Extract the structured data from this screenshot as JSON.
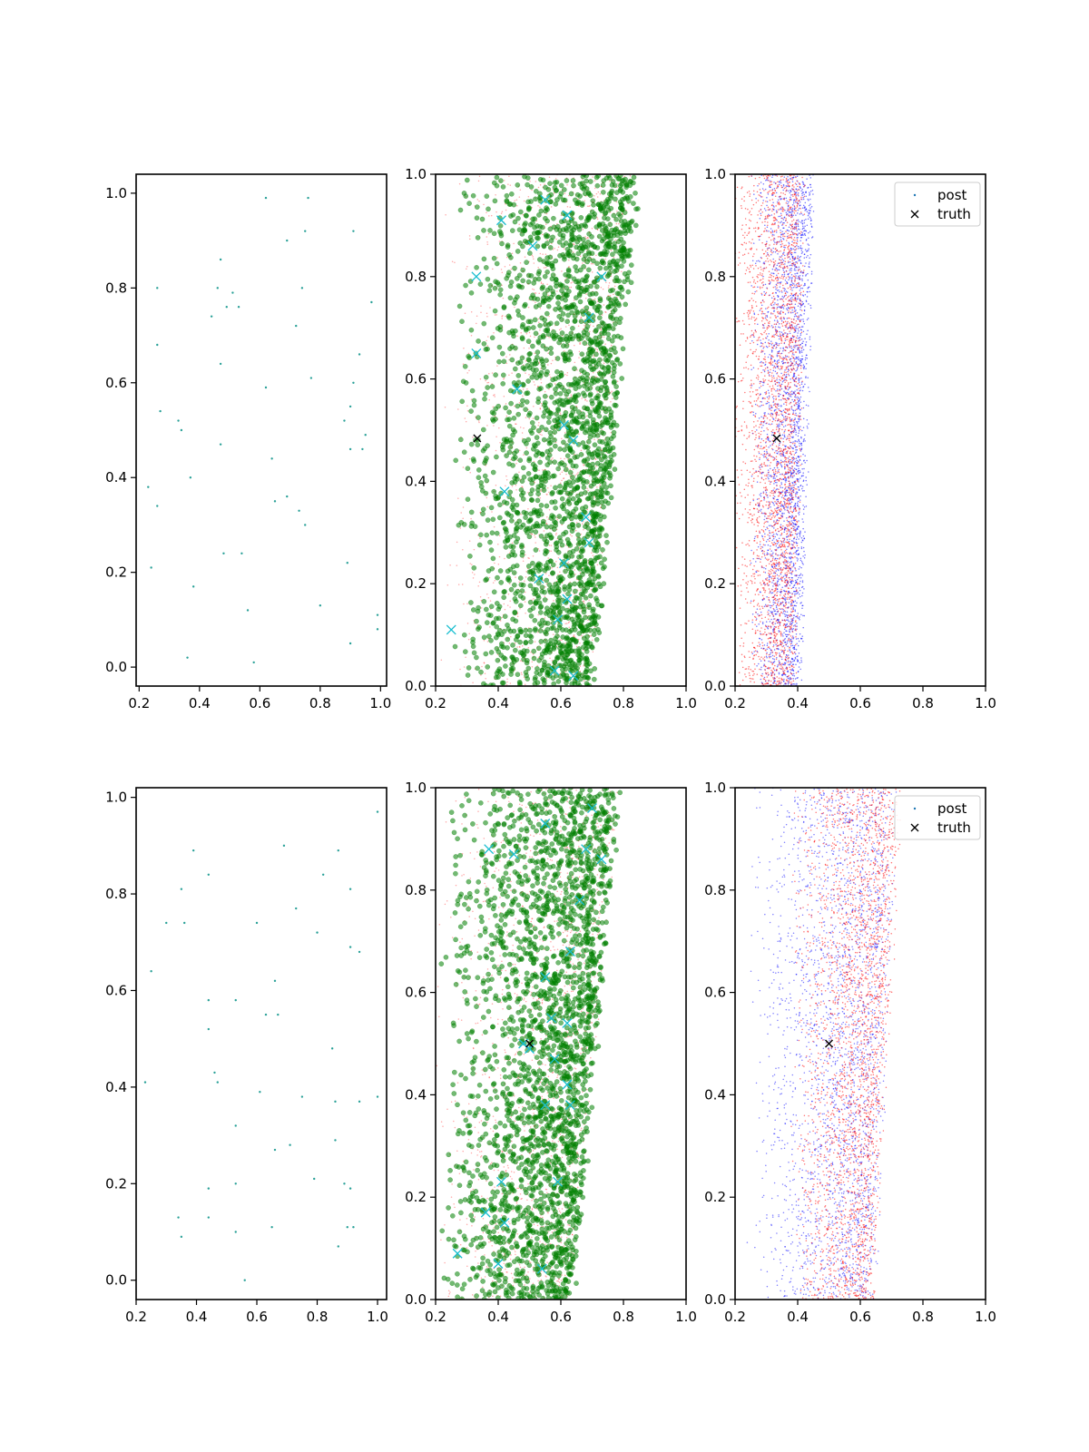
{
  "chart_data": [
    {
      "type": "scatter",
      "panel": "row1-col1",
      "xlim": [
        0.19,
        1.02
      ],
      "ylim": [
        -0.04,
        1.04
      ],
      "xticks": [
        "0.2",
        "0.4",
        "0.6",
        "0.8",
        "1.0"
      ],
      "yticks": [
        "0.0",
        "0.2",
        "0.4",
        "0.6",
        "0.8",
        "1.0"
      ],
      "series": [
        {
          "color": "#2aa198",
          "marker": "dot",
          "size": 1.2,
          "points": [
            [
              0.62,
              0.99
            ],
            [
              0.76,
              0.99
            ],
            [
              0.75,
              0.92
            ],
            [
              0.91,
              0.92
            ],
            [
              0.69,
              0.9
            ],
            [
              0.47,
              0.86
            ],
            [
              0.26,
              0.8
            ],
            [
              0.46,
              0.8
            ],
            [
              0.74,
              0.8
            ],
            [
              0.51,
              0.79
            ],
            [
              0.97,
              0.77
            ],
            [
              0.49,
              0.76
            ],
            [
              0.53,
              0.76
            ],
            [
              0.44,
              0.74
            ],
            [
              0.72,
              0.72
            ],
            [
              0.26,
              0.68
            ],
            [
              0.93,
              0.66
            ],
            [
              0.47,
              0.64
            ],
            [
              0.77,
              0.61
            ],
            [
              0.91,
              0.6
            ],
            [
              0.62,
              0.59
            ],
            [
              0.27,
              0.54
            ],
            [
              0.9,
              0.55
            ],
            [
              0.33,
              0.52
            ],
            [
              0.88,
              0.52
            ],
            [
              0.34,
              0.5
            ],
            [
              0.95,
              0.49
            ],
            [
              0.47,
              0.47
            ],
            [
              0.9,
              0.46
            ],
            [
              0.94,
              0.46
            ],
            [
              0.64,
              0.44
            ],
            [
              0.37,
              0.4
            ],
            [
              0.23,
              0.38
            ],
            [
              0.69,
              0.36
            ],
            [
              0.65,
              0.35
            ],
            [
              0.26,
              0.34
            ],
            [
              0.73,
              0.33
            ],
            [
              0.75,
              0.3
            ],
            [
              0.48,
              0.24
            ],
            [
              0.54,
              0.24
            ],
            [
              0.24,
              0.21
            ],
            [
              0.89,
              0.22
            ],
            [
              0.38,
              0.17
            ],
            [
              0.8,
              0.13
            ],
            [
              0.56,
              0.12
            ],
            [
              0.99,
              0.11
            ],
            [
              0.99,
              0.08
            ],
            [
              0.9,
              0.05
            ],
            [
              0.36,
              0.02
            ],
            [
              0.58,
              0.01
            ]
          ]
        }
      ]
    },
    {
      "type": "scatter",
      "panel": "row1-col2",
      "xlim": [
        0.2,
        1.0
      ],
      "ylim": [
        0.0,
        1.0
      ],
      "xticks": [
        "0.2",
        "0.4",
        "0.6",
        "0.8",
        "1.0"
      ],
      "yticks": [
        "0.0",
        "0.2",
        "0.4",
        "0.6",
        "0.8",
        "1.0"
      ],
      "series": [
        {
          "color": "#ff0000",
          "marker": "dot",
          "opacity": 0.35,
          "distribution": {
            "n": 1500,
            "x_low": 0.21,
            "x_left_bottom": 0.22,
            "x_right_bottom": 0.69,
            "x_right_top": 0.82,
            "x_mode": 0.68
          }
        },
        {
          "color": "#008000",
          "marker": "circle",
          "opacity": 0.55,
          "distribution": {
            "n": 2400,
            "x_low": 0.23,
            "x_left_bottom": 0.25,
            "x_right_bottom": 0.7,
            "x_right_top": 0.84,
            "x_mode": 0.7
          }
        },
        {
          "color": "#17becf",
          "marker": "x",
          "points": [
            [
              0.41,
              0.91
            ],
            [
              0.55,
              0.95
            ],
            [
              0.62,
              0.92
            ],
            [
              0.51,
              0.86
            ],
            [
              0.33,
              0.8
            ],
            [
              0.73,
              0.8
            ],
            [
              0.69,
              0.72
            ],
            [
              0.33,
              0.65
            ],
            [
              0.46,
              0.58
            ],
            [
              0.61,
              0.51
            ],
            [
              0.64,
              0.48
            ],
            [
              0.42,
              0.38
            ],
            [
              0.68,
              0.33
            ],
            [
              0.69,
              0.28
            ],
            [
              0.61,
              0.24
            ],
            [
              0.53,
              0.21
            ],
            [
              0.62,
              0.17
            ],
            [
              0.59,
              0.13
            ],
            [
              0.25,
              0.11
            ],
            [
              0.58,
              0.03
            ],
            [
              0.64,
              0.02
            ]
          ]
        },
        {
          "color": "#000000",
          "marker": "x",
          "points": [
            [
              0.333,
              0.484
            ]
          ]
        }
      ]
    },
    {
      "type": "scatter",
      "panel": "row1-col3",
      "xlim": [
        0.2,
        1.0
      ],
      "ylim": [
        0.0,
        1.0
      ],
      "xticks": [
        "0.2",
        "0.4",
        "0.6",
        "0.8",
        "1.0"
      ],
      "yticks": [
        "0.0",
        "0.2",
        "0.4",
        "0.6",
        "0.8",
        "1.0"
      ],
      "legend": {
        "position": "upper right",
        "entries": [
          {
            "label": "post",
            "color": "#1f77b4",
            "marker": "dot"
          },
          {
            "label": "truth",
            "color": "#000000",
            "marker": "x"
          }
        ]
      },
      "series": [
        {
          "name": "post",
          "color": "#0000ff",
          "marker": "dot",
          "opacity": 0.55,
          "distribution": {
            "n": 2600,
            "x_low": 0.25,
            "x_left_bottom": 0.25,
            "x_right_bottom": 0.4,
            "x_right_top": 0.44,
            "x_mode": 0.37
          }
        },
        {
          "color": "#ff0000",
          "marker": "dot",
          "opacity": 0.55,
          "distribution": {
            "n": 2600,
            "x_low": 0.2,
            "x_left_bottom": 0.2,
            "x_right_bottom": 0.38,
            "x_right_top": 0.41,
            "x_mode": 0.33
          }
        },
        {
          "name": "truth",
          "color": "#000000",
          "marker": "x",
          "points": [
            [
              0.333,
              0.484
            ]
          ]
        }
      ]
    },
    {
      "type": "scatter",
      "panel": "row2-col1",
      "xlim": [
        0.2,
        1.03
      ],
      "ylim": [
        -0.04,
        1.02
      ],
      "xticks": [
        "0.2",
        "0.4",
        "0.6",
        "0.8",
        "1.0"
      ],
      "yticks": [
        "0.0",
        "0.2",
        "0.4",
        "0.6",
        "0.8",
        "1.0"
      ],
      "series": [
        {
          "color": "#2aa198",
          "marker": "dot",
          "size": 1.2,
          "points": [
            [
              1.0,
              0.97
            ],
            [
              0.69,
              0.9
            ],
            [
              0.39,
              0.89
            ],
            [
              0.87,
              0.89
            ],
            [
              0.44,
              0.84
            ],
            [
              0.82,
              0.84
            ],
            [
              0.35,
              0.81
            ],
            [
              0.91,
              0.81
            ],
            [
              0.73,
              0.77
            ],
            [
              0.3,
              0.74
            ],
            [
              0.36,
              0.74
            ],
            [
              0.6,
              0.74
            ],
            [
              0.8,
              0.72
            ],
            [
              0.91,
              0.69
            ],
            [
              0.94,
              0.68
            ],
            [
              0.25,
              0.64
            ],
            [
              0.66,
              0.62
            ],
            [
              0.44,
              0.58
            ],
            [
              0.53,
              0.58
            ],
            [
              0.63,
              0.55
            ],
            [
              0.67,
              0.55
            ],
            [
              0.44,
              0.52
            ],
            [
              0.85,
              0.48
            ],
            [
              0.46,
              0.43
            ],
            [
              0.47,
              0.41
            ],
            [
              0.23,
              0.41
            ],
            [
              0.61,
              0.39
            ],
            [
              0.75,
              0.38
            ],
            [
              1.0,
              0.38
            ],
            [
              0.94,
              0.37
            ],
            [
              0.86,
              0.37
            ],
            [
              0.53,
              0.32
            ],
            [
              0.86,
              0.29
            ],
            [
              0.71,
              0.28
            ],
            [
              0.66,
              0.27
            ],
            [
              0.79,
              0.21
            ],
            [
              0.53,
              0.2
            ],
            [
              0.89,
              0.2
            ],
            [
              0.91,
              0.19
            ],
            [
              0.44,
              0.19
            ],
            [
              0.34,
              0.13
            ],
            [
              0.44,
              0.13
            ],
            [
              0.9,
              0.11
            ],
            [
              0.92,
              0.11
            ],
            [
              0.65,
              0.11
            ],
            [
              0.53,
              0.1
            ],
            [
              0.35,
              0.09
            ],
            [
              0.87,
              0.07
            ],
            [
              0.56,
              0.0
            ]
          ]
        }
      ]
    },
    {
      "type": "scatter",
      "panel": "row2-col2",
      "xlim": [
        0.2,
        1.0
      ],
      "ylim": [
        0.0,
        1.0
      ],
      "xticks": [
        "0.2",
        "0.4",
        "0.6",
        "0.8",
        "1.0"
      ],
      "yticks": [
        "0.0",
        "0.2",
        "0.4",
        "0.6",
        "0.8",
        "1.0"
      ],
      "series": [
        {
          "color": "#ff0000",
          "marker": "dot",
          "opacity": 0.35,
          "distribution": {
            "n": 1500,
            "x_low": 0.2,
            "x_left_bottom": 0.2,
            "x_right_bottom": 0.62,
            "x_right_top": 0.78,
            "x_mode": 0.6
          }
        },
        {
          "color": "#008000",
          "marker": "circle",
          "opacity": 0.55,
          "distribution": {
            "n": 2400,
            "x_low": 0.21,
            "x_left_bottom": 0.22,
            "x_right_bottom": 0.63,
            "x_right_top": 0.78,
            "x_mode": 0.6
          }
        },
        {
          "color": "#17becf",
          "marker": "x",
          "points": [
            [
              0.37,
              0.88
            ],
            [
              0.45,
              0.87
            ],
            [
              0.55,
              0.93
            ],
            [
              0.7,
              0.96
            ],
            [
              0.73,
              0.86
            ],
            [
              0.68,
              0.88
            ],
            [
              0.66,
              0.78
            ],
            [
              0.63,
              0.68
            ],
            [
              0.55,
              0.63
            ],
            [
              0.57,
              0.55
            ],
            [
              0.62,
              0.54
            ],
            [
              0.48,
              0.5
            ],
            [
              0.5,
              0.49
            ],
            [
              0.58,
              0.47
            ],
            [
              0.62,
              0.42
            ],
            [
              0.55,
              0.38
            ],
            [
              0.63,
              0.38
            ],
            [
              0.59,
              0.23
            ],
            [
              0.41,
              0.23
            ],
            [
              0.36,
              0.17
            ],
            [
              0.42,
              0.15
            ],
            [
              0.27,
              0.09
            ],
            [
              0.4,
              0.07
            ],
            [
              0.54,
              0.06
            ]
          ]
        },
        {
          "color": "#000000",
          "marker": "x",
          "points": [
            [
              0.5,
              0.5
            ]
          ]
        }
      ]
    },
    {
      "type": "scatter",
      "panel": "row2-col3",
      "xlim": [
        0.2,
        1.0
      ],
      "ylim": [
        0.0,
        1.0
      ],
      "xticks": [
        "0.2",
        "0.4",
        "0.6",
        "0.8",
        "1.0"
      ],
      "yticks": [
        "0.0",
        "0.2",
        "0.4",
        "0.6",
        "0.8",
        "1.0"
      ],
      "legend": {
        "position": "upper right",
        "entries": [
          {
            "label": "post",
            "color": "#1f77b4",
            "marker": "dot"
          },
          {
            "label": "truth",
            "color": "#000000",
            "marker": "x"
          }
        ]
      },
      "series": [
        {
          "name": "post",
          "color": "#0000ff",
          "marker": "dot",
          "opacity": 0.5,
          "distribution": {
            "n": 2600,
            "x_low": 0.21,
            "x_left_bottom": 0.24,
            "x_right_bottom": 0.64,
            "x_right_top": 0.7,
            "x_mode": 0.56
          }
        },
        {
          "color": "#ff0000",
          "marker": "dot",
          "opacity": 0.55,
          "distribution": {
            "n": 2600,
            "x_low": 0.28,
            "x_left_bottom": 0.38,
            "x_right_bottom": 0.63,
            "x_right_top": 0.72,
            "x_mode": 0.58
          }
        },
        {
          "name": "truth",
          "color": "#000000",
          "marker": "x",
          "points": [
            [
              0.5,
              0.5
            ]
          ]
        }
      ]
    }
  ]
}
